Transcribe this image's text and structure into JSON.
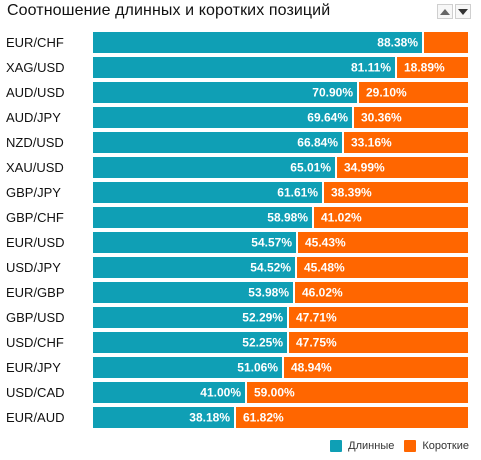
{
  "header": {
    "title": "Соотношение длинных и коротких позиций",
    "sort_up_icon": "triangle-up-icon",
    "sort_down_icon": "triangle-down-icon"
  },
  "chart_data": {
    "type": "bar",
    "orientation": "horizontal",
    "stacked": true,
    "categories": [
      "EUR/CHF",
      "XAG/USD",
      "AUD/USD",
      "AUD/JPY",
      "NZD/USD",
      "XAU/USD",
      "GBP/JPY",
      "GBP/CHF",
      "EUR/USD",
      "USD/JPY",
      "EUR/GBP",
      "GBP/USD",
      "USD/CHF",
      "EUR/JPY",
      "USD/CAD",
      "EUR/AUD"
    ],
    "series": [
      {
        "name": "Длинные",
        "values": [
          88.38,
          81.11,
          70.9,
          69.64,
          66.84,
          65.01,
          61.61,
          58.98,
          54.57,
          54.52,
          53.98,
          52.29,
          52.25,
          51.06,
          41.0,
          38.18
        ],
        "labels": [
          "88.38%",
          "81.11%",
          "70.90%",
          "69.64%",
          "66.84%",
          "65.01%",
          "61.61%",
          "58.98%",
          "54.57%",
          "54.52%",
          "53.98%",
          "52.29%",
          "52.25%",
          "51.06%",
          "41.00%",
          "38.18%"
        ]
      },
      {
        "name": "Короткие",
        "values": [
          11.62,
          18.89,
          29.1,
          30.36,
          33.16,
          34.99,
          38.39,
          41.02,
          45.43,
          45.48,
          46.02,
          47.71,
          47.75,
          48.94,
          59.0,
          61.82
        ],
        "labels": [
          "",
          "18.89%",
          "29.10%",
          "30.36%",
          "33.16%",
          "34.99%",
          "38.39%",
          "41.02%",
          "45.43%",
          "45.48%",
          "46.02%",
          "47.71%",
          "47.75%",
          "48.94%",
          "59.00%",
          "61.82%"
        ]
      }
    ],
    "xlim": [
      0,
      100
    ],
    "grid": false,
    "legend_position": "bottom-right"
  },
  "colors": {
    "long": "#0f9fb5",
    "short": "#ff6600",
    "text_on_bar": "#ffffff",
    "category_text": "#111111",
    "background": "#ffffff",
    "row_separator": "#ffffff"
  },
  "legend": {
    "long_label": "Длинные",
    "short_label": "Короткие"
  }
}
